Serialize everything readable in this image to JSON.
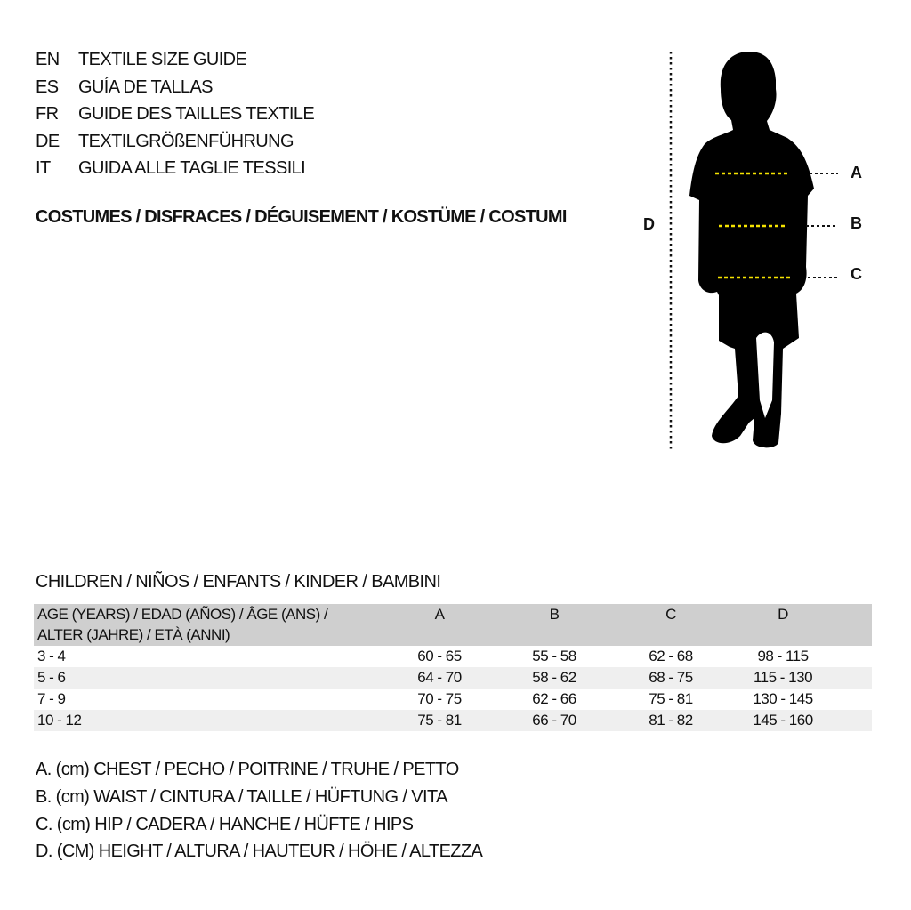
{
  "guide_titles": [
    {
      "code": "EN",
      "label": "TEXTILE SIZE GUIDE"
    },
    {
      "code": "ES",
      "label": "GUÍA DE TALLAS"
    },
    {
      "code": "FR",
      "label": "GUIDE DES TAILLES TEXTILE"
    },
    {
      "code": "DE",
      "label": "TEXTILGRÖßENFÜHRUNG"
    },
    {
      "code": "IT",
      "label": "GUIDA ALLE TAGLIE TESSILI"
    }
  ],
  "category": "COSTUMES / DISFRACES / DÉGUISEMENT / KOSTÜME / COSTUMI",
  "figure": {
    "labels": {
      "a": "A",
      "b": "B",
      "c": "C",
      "d": "D"
    },
    "guide_line_color": "#f5e300"
  },
  "audience": "CHILDREN / NIÑOS / ENFANTS / KINDER / BAMBINI",
  "table": {
    "header": {
      "age_line1": "AGE (YEARS) / EDAD (AÑOS) / ÂGE (ANS) /",
      "age_line2": "ALTER (JAHRE) / ETÀ (ANNI)",
      "a": "A",
      "b": "B",
      "c": "C",
      "d": "D"
    },
    "rows": [
      {
        "age": "3 - 4",
        "a": "60 - 65",
        "b": "55 - 58",
        "c": "62 - 68",
        "d": "98 - 115"
      },
      {
        "age": "5 - 6",
        "a": "64 - 70",
        "b": "58 - 62",
        "c": "68 - 75",
        "d": "115 - 130"
      },
      {
        "age": "7 - 9",
        "a": "70 - 75",
        "b": "62 - 66",
        "c": "75 - 81",
        "d": "130 - 145"
      },
      {
        "age": "10 - 12",
        "a": "75 - 81",
        "b": "66 - 70",
        "c": "81 - 82",
        "d": "145 - 160"
      }
    ]
  },
  "legend": [
    "A. (cm) CHEST / PECHO / POITRINE / TRUHE / PETTO",
    "B. (cm) WAIST / CINTURA / TAILLE / HÜFTUNG / VITA",
    "C. (cm) HIP / CADERA / HANCHE / HÜFTE / HIPS",
    "D. (CM) HEIGHT / ALTURA / HAUTEUR / HÖHE / ALTEZZA"
  ]
}
